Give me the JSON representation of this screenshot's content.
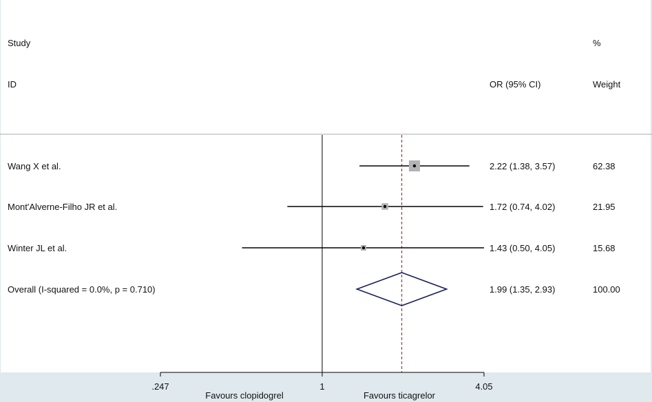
{
  "header": {
    "study_line1": "Study",
    "study_line2": "ID",
    "ci_header": "OR (95% CI)",
    "weight_line1": "%",
    "weight_line2": "Weight"
  },
  "chart_data": {
    "type": "forest",
    "scale": "log",
    "xlim": [
      0.247,
      4.05
    ],
    "ticks": [
      {
        "value": 0.247,
        "label": ".247"
      },
      {
        "value": 1,
        "label": "1"
      },
      {
        "value": 4.05,
        "label": "4.05"
      }
    ],
    "null_value": 1,
    "pooled_reference": 1.99,
    "favours": {
      "left": "Favours clopidogrel",
      "right": "Favours ticagrelor"
    },
    "studies": [
      {
        "id": "Wang X et al.",
        "or": 2.22,
        "lo": 1.38,
        "hi": 3.57,
        "ci_text": "2.22 (1.38, 3.57)",
        "weight": 62.38,
        "weight_text": "62.38"
      },
      {
        "id": "Mont'Alverne-Filho JR et al.",
        "or": 1.72,
        "lo": 0.74,
        "hi": 4.02,
        "ci_text": "1.72 (0.74, 4.02)",
        "weight": 21.95,
        "weight_text": "21.95"
      },
      {
        "id": "Winter JL et al.",
        "or": 1.43,
        "lo": 0.5,
        "hi": 4.05,
        "ci_text": "1.43 (0.50, 4.05)",
        "weight": 15.68,
        "weight_text": "15.68"
      }
    ],
    "overall": {
      "id": "Overall  (I-squared = 0.0%, p = 0.710)",
      "or": 1.99,
      "lo": 1.35,
      "hi": 2.93,
      "ci_text": "1.99 (1.35, 2.93)",
      "weight_text": "100.00"
    }
  },
  "colors": {
    "diamond": "#1a1f5c",
    "reference_line": "#8b1a1a",
    "weight_box": "#b3b3b3",
    "axis_band": "#dfe9ee"
  }
}
